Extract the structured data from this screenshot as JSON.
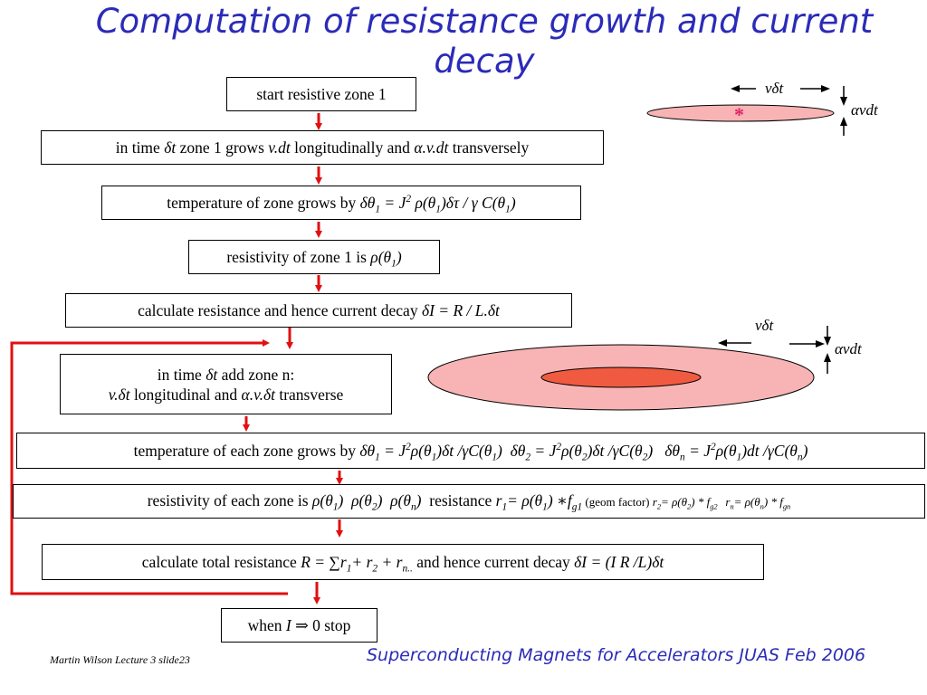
{
  "title": "Computation of resistance growth and current decay",
  "footer": {
    "left": "Martin Wilson Lecture 3 slide23",
    "right": "Superconducting Magnets for Accelerators JUAS Feb 2006"
  },
  "labels": {
    "vdt_top": "vδt",
    "avdt_top": "αvdt",
    "star": "*",
    "vdt_mid": "vδt",
    "avdt_mid": "αvdt"
  },
  "steps": {
    "start": "start resistive zone 1",
    "grow1": {
      "a": "in time ",
      "b": "δt",
      "c": " zone 1 grows ",
      "d": "v.dt",
      "e": " longitudinally and ",
      "f": "α.v.dt",
      "g": " transversely"
    },
    "temp1": {
      "a": "temperature of zone grows by ",
      "b": "δθ",
      "b_sub": "1",
      "c": " = J",
      "c_sup": "2",
      "d": " ρ(θ",
      "d_sub": "1",
      "e": ")δτ / γ C(θ",
      "e_sub": "1",
      "f": ")"
    },
    "resist1": {
      "a": "resistivity of zone 1 is ",
      "b": "ρ(θ",
      "b_sub": "1",
      "c": ")"
    },
    "calc1": {
      "a": "calculate resistance and hence current decay ",
      "b": "δI = R / L.δt"
    },
    "addzone": {
      "line1a": "in time ",
      "line1b": "δt",
      "line1c": " add zone n:",
      "line2a": "v.δt",
      "line2b": " longitudinal and ",
      "line2c": "α.v.δt",
      "line2d": " transverse"
    },
    "tempn": {
      "a": "temperature of each zone grows by ",
      "t1": "δθ",
      "t1s": "1",
      "t1b": " = J",
      "t1sup": "2",
      "t1c": "ρ(θ",
      "t1cs": "1",
      "t1d": ")δt /γC(θ",
      "t1ds": "1",
      "t1e": ")",
      "t2": "δθ",
      "t2s": "2",
      "t2b": " = J",
      "t2sup": "2",
      "t2c": "ρ(θ",
      "t2cs": "2",
      "t2d": ")δt /γC(θ",
      "t2ds": "2",
      "t2e": ")",
      "tn": "δθ",
      "tns": "n",
      "tnb": " = J",
      "tnsup": "2",
      "tnc": "ρ(θ",
      "tncs": "1",
      "tnd": ")dt /γC(θ",
      "tnds": "n",
      "tne": ")"
    },
    "resistn": {
      "a": "resistivity of each zone is ",
      "p1": "ρ(θ",
      "p1s": "1",
      "p1e": ")",
      "p2": "ρ(θ",
      "p2s": "2",
      "p2e": ")",
      "pn": "ρ(θ",
      "pns": "n",
      "pne": ")",
      "b": "resistance ",
      "r1": "r",
      "r1s": "1",
      "r1b": "= ",
      "r1c": "ρ(θ",
      "r1cs": "1",
      "r1d": ") ∗f",
      "r1ds": "g1",
      "geom": " (geom factor) ",
      "r2": "r",
      "r2s": "2",
      "r2b": "= ρ(θ",
      "r2bs": "2",
      "r2c": ") * f",
      "r2cs": "g2",
      "rn": "r",
      "rns": "n",
      "rnb": "= ρ(θ",
      "rnbs": "n",
      "rnc": ") * f",
      "rncs": "gn"
    },
    "calctot": {
      "a": "calculate total resistance ",
      "b": "R = ∑r",
      "bs": "1",
      "c": "+ r",
      "cs": "2",
      "d": " + r",
      "ds": "n..",
      "e": "  and hence current decay ",
      "f": "δI = (I R /L)δt"
    },
    "stop": {
      "a": "when ",
      "b": "I",
      "c": " ⇒ 0 stop"
    }
  },
  "colors": {
    "arrow": "#e01010",
    "title": "#2b2bb8",
    "zone_outer": "#f8b4b4",
    "zone_inner": "#f05a40",
    "star": "#e0206a"
  }
}
